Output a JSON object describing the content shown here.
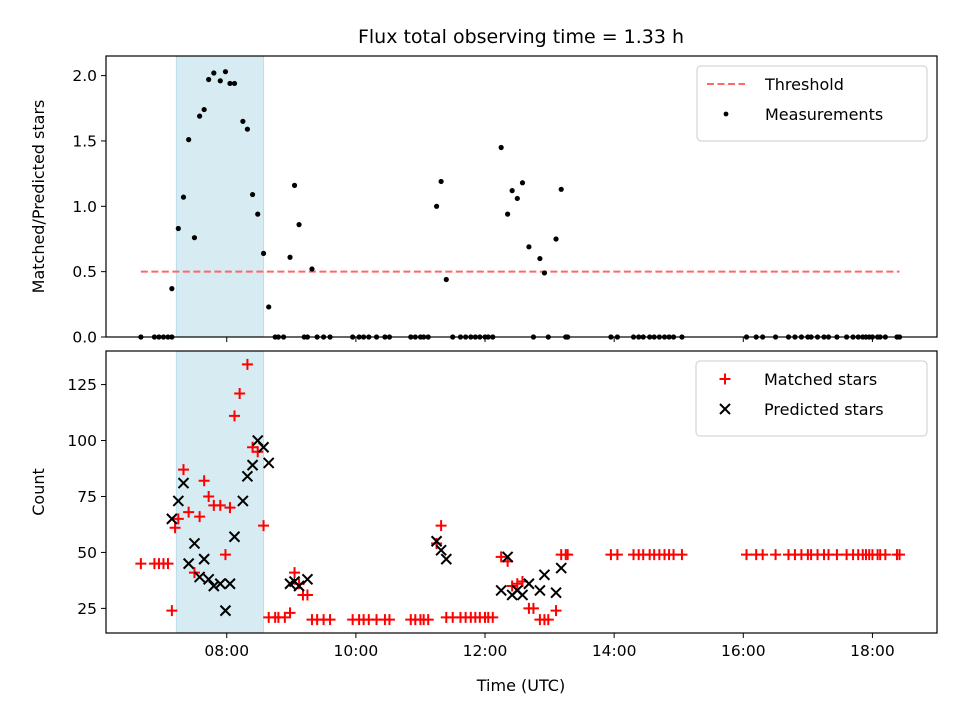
{
  "figure": {
    "title": "Flux total observing time = 1.33 h",
    "xlabel": "Time (UTC)"
  },
  "colors": {
    "threshold": "#ff6666",
    "measurement": "#000000",
    "matched": "#ff0000",
    "predicted": "#000000",
    "shade": "#add8e6"
  },
  "chart_data": [
    {
      "type": "scatter",
      "title": "Flux total observing time = 1.33 h",
      "ylabel": "Matched/Predicted stars",
      "xlabel": "",
      "x_unit": "hours UTC",
      "xlim": [
        6.13,
        19.0
      ],
      "ylim": [
        0,
        2.15
      ],
      "yticks": [
        0.0,
        0.5,
        1.0,
        1.5,
        2.0
      ],
      "ytick_labels": [
        "0.0",
        "0.5",
        "1.0",
        "1.5",
        "2.0"
      ],
      "xticks": [
        8,
        10,
        12,
        14,
        16,
        18
      ],
      "xtick_labels": [],
      "shaded_span": [
        7.22,
        8.57
      ],
      "legend_position": "top-right",
      "threshold": {
        "name": "Threshold",
        "x": [
          6.67,
          18.42
        ],
        "y": 0.5
      },
      "series": [
        {
          "name": "Measurements",
          "marker": "dot",
          "points": [
            [
              6.67,
              0
            ],
            [
              6.88,
              0
            ],
            [
              6.95,
              0
            ],
            [
              7.02,
              0
            ],
            [
              7.09,
              0
            ],
            [
              7.15,
              0
            ],
            [
              7.15,
              0.37
            ],
            [
              7.25,
              0.83
            ],
            [
              7.33,
              1.07
            ],
            [
              7.41,
              1.51
            ],
            [
              7.5,
              0.76
            ],
            [
              7.58,
              1.69
            ],
            [
              7.65,
              1.74
            ],
            [
              7.72,
              1.97
            ],
            [
              7.8,
              2.02
            ],
            [
              7.9,
              1.96
            ],
            [
              7.98,
              2.03
            ],
            [
              8.05,
              1.94
            ],
            [
              8.12,
              1.94
            ],
            [
              8.25,
              1.65
            ],
            [
              8.32,
              1.59
            ],
            [
              8.4,
              1.09
            ],
            [
              8.48,
              0.94
            ],
            [
              8.57,
              0.64
            ],
            [
              8.65,
              0.23
            ],
            [
              8.75,
              0
            ],
            [
              8.8,
              0
            ],
            [
              8.88,
              0
            ],
            [
              8.98,
              0.61
            ],
            [
              9.05,
              1.16
            ],
            [
              9.12,
              0.86
            ],
            [
              9.2,
              0
            ],
            [
              9.25,
              0
            ],
            [
              9.32,
              0.52
            ],
            [
              9.4,
              0
            ],
            [
              9.5,
              0
            ],
            [
              9.6,
              0
            ],
            [
              9.95,
              0
            ],
            [
              10.05,
              0
            ],
            [
              10.12,
              0
            ],
            [
              10.2,
              0
            ],
            [
              10.32,
              0
            ],
            [
              10.45,
              0
            ],
            [
              10.52,
              0
            ],
            [
              10.85,
              0
            ],
            [
              10.92,
              0
            ],
            [
              11.0,
              0
            ],
            [
              11.05,
              0
            ],
            [
              11.12,
              0
            ],
            [
              11.25,
              1.0
            ],
            [
              11.32,
              1.19
            ],
            [
              11.4,
              0.44
            ],
            [
              11.5,
              0
            ],
            [
              11.62,
              0
            ],
            [
              11.7,
              0
            ],
            [
              11.78,
              0
            ],
            [
              11.85,
              0
            ],
            [
              11.92,
              0
            ],
            [
              12.0,
              0
            ],
            [
              12.05,
              0
            ],
            [
              12.12,
              0
            ],
            [
              12.25,
              1.45
            ],
            [
              12.35,
              0.94
            ],
            [
              12.42,
              1.12
            ],
            [
              12.5,
              1.06
            ],
            [
              12.58,
              1.18
            ],
            [
              12.68,
              0.69
            ],
            [
              12.75,
              0
            ],
            [
              12.85,
              0.6
            ],
            [
              12.92,
              0.49
            ],
            [
              12.98,
              0
            ],
            [
              13.1,
              0.75
            ],
            [
              13.18,
              1.13
            ],
            [
              13.25,
              0
            ],
            [
              13.28,
              0
            ],
            [
              13.95,
              0
            ],
            [
              14.05,
              0
            ],
            [
              14.3,
              0
            ],
            [
              14.38,
              0
            ],
            [
              14.45,
              0
            ],
            [
              14.55,
              0
            ],
            [
              14.62,
              0
            ],
            [
              14.7,
              0
            ],
            [
              14.78,
              0
            ],
            [
              14.85,
              0
            ],
            [
              14.92,
              0
            ],
            [
              15.05,
              0
            ],
            [
              16.05,
              0
            ],
            [
              16.2,
              0
            ],
            [
              16.3,
              0
            ],
            [
              16.5,
              0
            ],
            [
              16.7,
              0
            ],
            [
              16.8,
              0
            ],
            [
              16.9,
              0
            ],
            [
              17.0,
              0
            ],
            [
              17.05,
              0
            ],
            [
              17.15,
              0
            ],
            [
              17.25,
              0
            ],
            [
              17.32,
              0
            ],
            [
              17.45,
              0
            ],
            [
              17.6,
              0
            ],
            [
              17.7,
              0
            ],
            [
              17.78,
              0
            ],
            [
              17.85,
              0
            ],
            [
              17.9,
              0
            ],
            [
              17.95,
              0
            ],
            [
              18.0,
              0
            ],
            [
              18.08,
              0
            ],
            [
              18.12,
              0
            ],
            [
              18.2,
              0
            ],
            [
              18.38,
              0
            ],
            [
              18.42,
              0
            ]
          ]
        }
      ]
    },
    {
      "type": "scatter",
      "title": "",
      "ylabel": "Count",
      "xlabel": "Time (UTC)",
      "x_unit": "hours UTC",
      "xlim": [
        6.13,
        19.0
      ],
      "ylim": [
        14,
        140
      ],
      "yticks": [
        25,
        50,
        75,
        100,
        125
      ],
      "ytick_labels": [
        "25",
        "50",
        "75",
        "100",
        "125"
      ],
      "xticks": [
        8,
        10,
        12,
        14,
        16,
        18
      ],
      "xtick_labels": [
        "08:00",
        "10:00",
        "12:00",
        "14:00",
        "16:00",
        "18:00"
      ],
      "shaded_span": [
        7.22,
        8.57
      ],
      "legend_position": "top-right",
      "series": [
        {
          "name": "Matched stars",
          "marker": "plus",
          "points": [
            [
              6.67,
              45
            ],
            [
              6.88,
              45
            ],
            [
              6.95,
              45
            ],
            [
              7.02,
              45
            ],
            [
              7.09,
              45
            ],
            [
              7.15,
              24
            ],
            [
              7.2,
              61
            ],
            [
              7.25,
              65
            ],
            [
              7.33,
              87
            ],
            [
              7.41,
              68
            ],
            [
              7.5,
              41
            ],
            [
              7.58,
              66
            ],
            [
              7.65,
              82
            ],
            [
              7.72,
              75
            ],
            [
              7.8,
              71
            ],
            [
              7.9,
              71
            ],
            [
              7.98,
              49
            ],
            [
              8.05,
              70
            ],
            [
              8.12,
              111
            ],
            [
              8.2,
              121
            ],
            [
              8.32,
              134
            ],
            [
              8.4,
              97
            ],
            [
              8.48,
              95
            ],
            [
              8.57,
              62
            ],
            [
              8.65,
              21
            ],
            [
              8.75,
              21
            ],
            [
              8.8,
              21
            ],
            [
              8.9,
              21
            ],
            [
              8.98,
              23
            ],
            [
              9.05,
              41
            ],
            [
              9.12,
              36
            ],
            [
              9.18,
              31
            ],
            [
              9.25,
              31
            ],
            [
              9.32,
              20
            ],
            [
              9.4,
              20
            ],
            [
              9.5,
              20
            ],
            [
              9.6,
              20
            ],
            [
              9.95,
              20
            ],
            [
              10.05,
              20
            ],
            [
              10.12,
              20
            ],
            [
              10.2,
              20
            ],
            [
              10.32,
              20
            ],
            [
              10.45,
              20
            ],
            [
              10.52,
              20
            ],
            [
              10.85,
              20
            ],
            [
              10.92,
              20
            ],
            [
              11.0,
              20
            ],
            [
              11.05,
              20
            ],
            [
              11.12,
              20
            ],
            [
              11.25,
              54
            ],
            [
              11.32,
              62
            ],
            [
              11.4,
              21
            ],
            [
              11.5,
              21
            ],
            [
              11.62,
              21
            ],
            [
              11.7,
              21
            ],
            [
              11.78,
              21
            ],
            [
              11.85,
              21
            ],
            [
              11.92,
              21
            ],
            [
              12.0,
              21
            ],
            [
              12.05,
              21
            ],
            [
              12.12,
              21
            ],
            [
              12.25,
              48
            ],
            [
              12.35,
              46
            ],
            [
              12.42,
              35
            ],
            [
              12.5,
              36
            ],
            [
              12.58,
              37
            ],
            [
              12.68,
              25
            ],
            [
              12.75,
              25
            ],
            [
              12.85,
              20
            ],
            [
              12.92,
              20
            ],
            [
              12.98,
              20
            ],
            [
              13.1,
              24
            ],
            [
              13.18,
              49
            ],
            [
              13.25,
              49
            ],
            [
              13.28,
              49
            ],
            [
              13.95,
              49
            ],
            [
              14.05,
              49
            ],
            [
              14.3,
              49
            ],
            [
              14.38,
              49
            ],
            [
              14.45,
              49
            ],
            [
              14.55,
              49
            ],
            [
              14.62,
              49
            ],
            [
              14.7,
              49
            ],
            [
              14.78,
              49
            ],
            [
              14.85,
              49
            ],
            [
              14.92,
              49
            ],
            [
              15.05,
              49
            ],
            [
              16.05,
              49
            ],
            [
              16.2,
              49
            ],
            [
              16.3,
              49
            ],
            [
              16.5,
              49
            ],
            [
              16.7,
              49
            ],
            [
              16.8,
              49
            ],
            [
              16.9,
              49
            ],
            [
              17.0,
              49
            ],
            [
              17.05,
              49
            ],
            [
              17.15,
              49
            ],
            [
              17.25,
              49
            ],
            [
              17.32,
              49
            ],
            [
              17.45,
              49
            ],
            [
              17.6,
              49
            ],
            [
              17.7,
              49
            ],
            [
              17.78,
              49
            ],
            [
              17.85,
              49
            ],
            [
              17.9,
              49
            ],
            [
              17.95,
              49
            ],
            [
              18.0,
              49
            ],
            [
              18.08,
              49
            ],
            [
              18.12,
              49
            ],
            [
              18.2,
              49
            ],
            [
              18.38,
              49
            ],
            [
              18.42,
              49
            ]
          ]
        },
        {
          "name": "Predicted stars",
          "marker": "x",
          "points": [
            [
              7.15,
              65
            ],
            [
              7.25,
              73
            ],
            [
              7.33,
              81
            ],
            [
              7.41,
              45
            ],
            [
              7.5,
              54
            ],
            [
              7.58,
              39
            ],
            [
              7.65,
              47
            ],
            [
              7.72,
              38
            ],
            [
              7.8,
              35
            ],
            [
              7.9,
              36
            ],
            [
              7.98,
              24
            ],
            [
              8.05,
              36
            ],
            [
              8.12,
              57
            ],
            [
              8.25,
              73
            ],
            [
              8.32,
              84
            ],
            [
              8.4,
              89
            ],
            [
              8.48,
              100
            ],
            [
              8.57,
              97
            ],
            [
              8.65,
              90
            ],
            [
              8.98,
              36
            ],
            [
              9.05,
              37
            ],
            [
              9.12,
              35
            ],
            [
              9.25,
              38
            ],
            [
              11.25,
              55
            ],
            [
              11.32,
              51
            ],
            [
              11.4,
              47
            ],
            [
              12.25,
              33
            ],
            [
              12.35,
              48
            ],
            [
              12.42,
              31
            ],
            [
              12.5,
              33
            ],
            [
              12.58,
              31
            ],
            [
              12.68,
              36
            ],
            [
              12.85,
              33
            ],
            [
              12.92,
              40
            ],
            [
              13.1,
              32
            ],
            [
              13.18,
              43
            ]
          ]
        }
      ]
    }
  ]
}
